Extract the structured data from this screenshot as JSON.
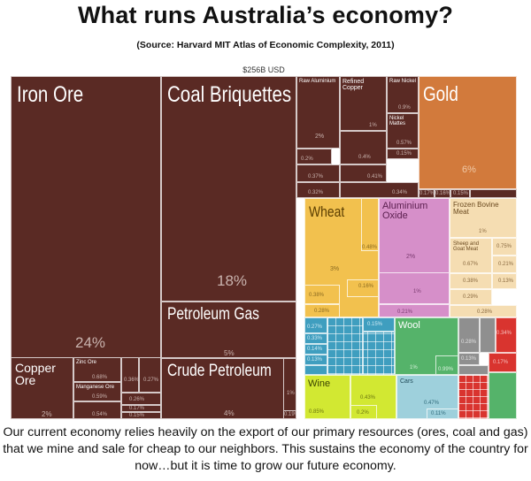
{
  "title": "What runs Australia’s economy?",
  "subtitle": "(Source: Harvard MIT Atlas of Economic Complexity, 2011)",
  "caption": "Our current economy relies heavily on the export of our primary resources (ores, coal and gas) that we mine and sale for cheap to our neighbors.  This sustains the economy of the country for now…but it is time to grow our future economy.",
  "colors": {
    "minerals": "#5a2a24",
    "gold": "#d27a3c",
    "food": "#f2c14e",
    "chemicals": "#d68fc9",
    "animal": "#f5ddb2",
    "textiles": "#3f9ebf",
    "agriculture": "#55b36a",
    "vegetable": "#d2e832",
    "machinery": "#9ed0dc",
    "metals": "#8f8f8f",
    "other": "#d9342f"
  },
  "chart_data": {
    "type": "treemap",
    "total_label": "$256B USD",
    "cells": [
      {
        "name": "Iron Ore",
        "share": "24%"
      },
      {
        "name": "Coal Briquettes",
        "share": "18%"
      },
      {
        "name": "Petroleum Gas",
        "share": "5%"
      },
      {
        "name": "Crude Petroleum",
        "share": "4%"
      },
      {
        "name": "Copper Ore",
        "share": "2%"
      },
      {
        "name": "Zinc Ore",
        "share": "0.68%"
      },
      {
        "name": "Manganese Ore",
        "share": "0.59%"
      },
      {
        "name": "",
        "share": "0.54%"
      },
      {
        "name": "",
        "share": "0.36%"
      },
      {
        "name": "",
        "share": "0.27%"
      },
      {
        "name": "",
        "share": "0.26%"
      },
      {
        "name": "",
        "share": "0.17%"
      },
      {
        "name": "",
        "share": "0.15%"
      },
      {
        "name": "",
        "share": "1%"
      },
      {
        "name": "",
        "share": "0.19%"
      },
      {
        "name": "Raw Aluminium",
        "share": "2%"
      },
      {
        "name": "Refined Copper",
        "share": "1%"
      },
      {
        "name": "Raw Nickel",
        "share": "0.9%"
      },
      {
        "name": "Nickel Mattes",
        "share": "0.57%"
      },
      {
        "name": "",
        "share": "0.15%"
      },
      {
        "name": "",
        "share": "0.2%"
      },
      {
        "name": "",
        "share": "0.4%"
      },
      {
        "name": "",
        "share": "0.37%"
      },
      {
        "name": "",
        "share": "0.41%"
      },
      {
        "name": "",
        "share": "0.32%"
      },
      {
        "name": "",
        "share": "0.34%"
      },
      {
        "name": "Gold",
        "share": "6%"
      },
      {
        "name": "",
        "share": "0.17%"
      },
      {
        "name": "",
        "share": "0.16%"
      },
      {
        "name": "",
        "share": "0.15%"
      },
      {
        "name": "Wheat",
        "share": "3%"
      },
      {
        "name": "",
        "share": "0.48%"
      },
      {
        "name": "",
        "share": "0.16%"
      },
      {
        "name": "",
        "share": "0.38%"
      },
      {
        "name": "",
        "share": "0.28%"
      },
      {
        "name": "Aluminium Oxide",
        "share": "2%"
      },
      {
        "name": "",
        "share": "1%"
      },
      {
        "name": "",
        "share": "0.21%"
      },
      {
        "name": "Frozen Bovine Meat",
        "share": "1%"
      },
      {
        "name": "Sheep and Goat Meat",
        "share": "0.67%"
      },
      {
        "name": "",
        "share": "0.75%"
      },
      {
        "name": "",
        "share": "0.21%"
      },
      {
        "name": "",
        "share": "0.38%"
      },
      {
        "name": "",
        "share": "0.13%"
      },
      {
        "name": "",
        "share": "0.29%"
      },
      {
        "name": "",
        "share": "0.28%"
      },
      {
        "name": "Wool",
        "share": "1%"
      },
      {
        "name": "",
        "share": "0.99%"
      },
      {
        "name": "",
        "share": "0.27%"
      },
      {
        "name": "",
        "share": "0.15%"
      },
      {
        "name": "",
        "share": "0.33%"
      },
      {
        "name": "",
        "share": "0.14%"
      },
      {
        "name": "",
        "share": "0.13%"
      },
      {
        "name": "",
        "share": "0.28%"
      },
      {
        "name": "",
        "share": "0.13%"
      },
      {
        "name": "",
        "share": "0.34%"
      },
      {
        "name": "",
        "share": "0.17%"
      },
      {
        "name": "Wine",
        "share": "0.85%"
      },
      {
        "name": "",
        "share": "0.43%"
      },
      {
        "name": "",
        "share": "0.2%"
      },
      {
        "name": "Cars",
        "share": "0.47%"
      },
      {
        "name": "",
        "share": "0.11%"
      }
    ]
  }
}
